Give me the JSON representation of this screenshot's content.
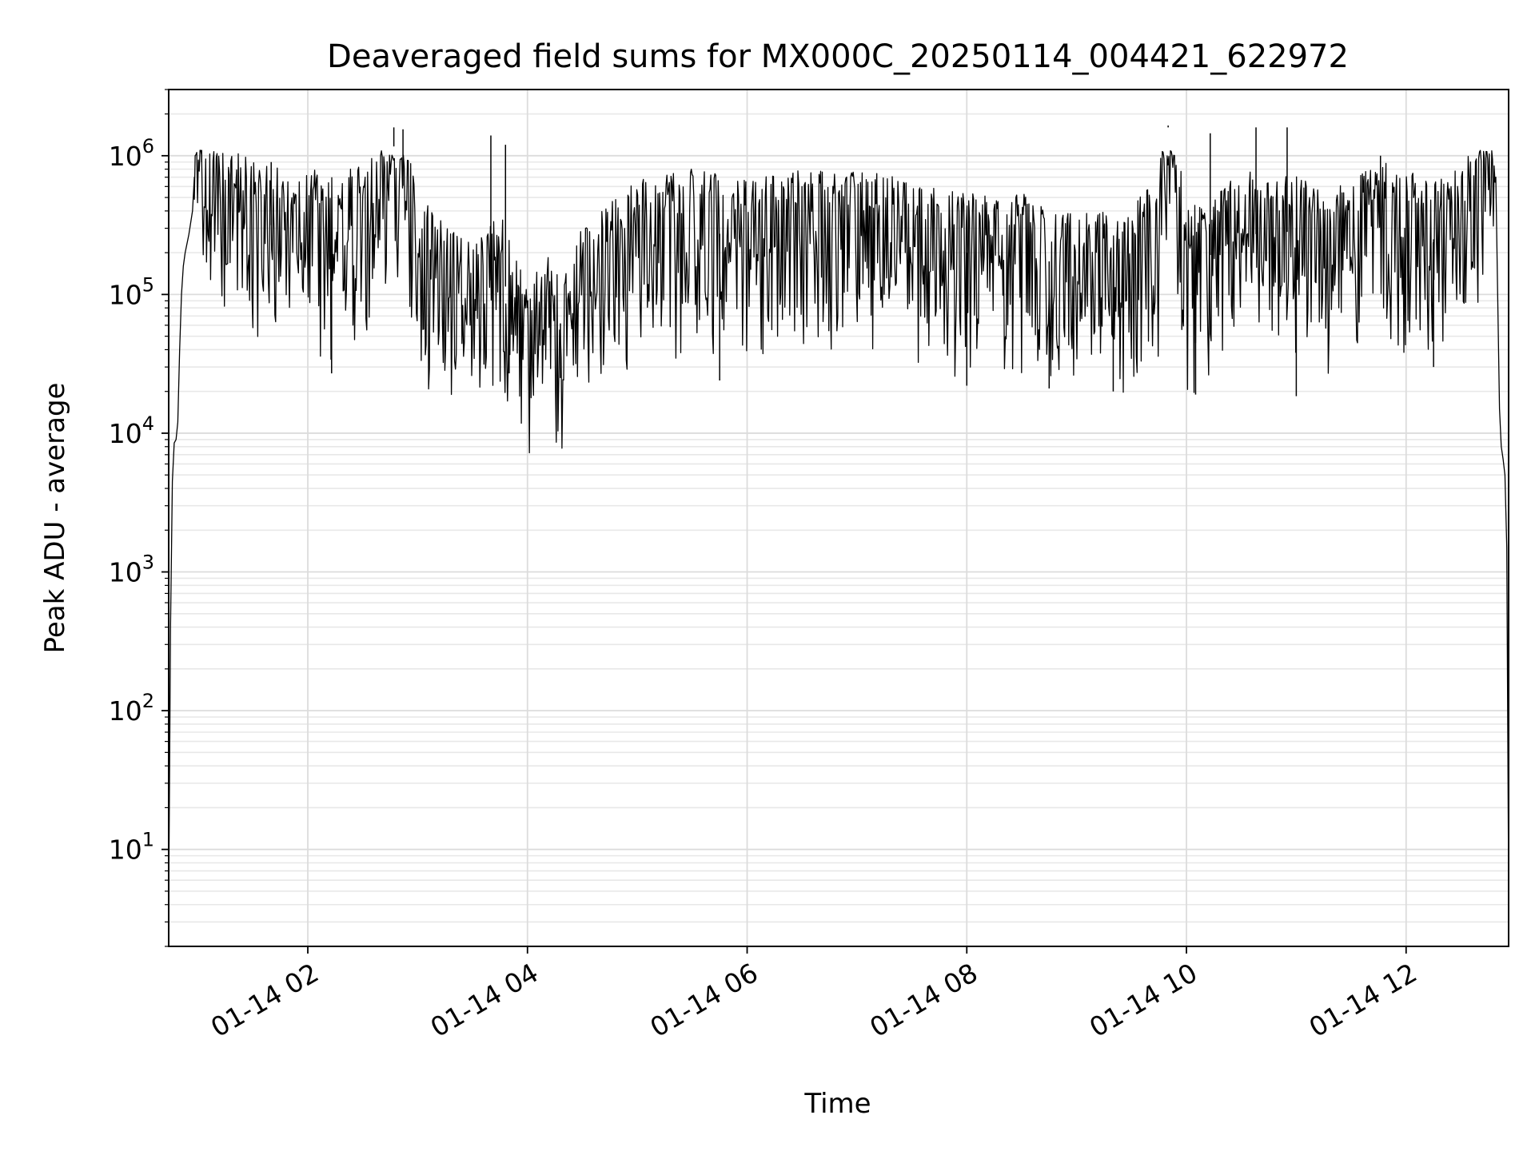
{
  "chart_data": {
    "type": "line",
    "title": "Deaveraged field sums for MX000C_20250114_004421_622972",
    "xlabel": "Time",
    "ylabel": "Peak ADU - average",
    "yscale": "log",
    "ylim": [
      2,
      3000000
    ],
    "xlim": [
      "01-14 00:44",
      "01-14 12:56"
    ],
    "grid": true,
    "line_color": "#000000",
    "x_ticks": [
      {
        "value": "01-14 02:00",
        "label": "01-14 02"
      },
      {
        "value": "01-14 04:00",
        "label": "01-14 04"
      },
      {
        "value": "01-14 06:00",
        "label": "01-14 06"
      },
      {
        "value": "01-14 08:00",
        "label": "01-14 08"
      },
      {
        "value": "01-14 10:00",
        "label": "01-14 10"
      },
      {
        "value": "01-14 12:00",
        "label": "01-14 12"
      }
    ],
    "y_ticks": [
      {
        "value": 10,
        "base": "10",
        "exp": "1"
      },
      {
        "value": 100,
        "base": "10",
        "exp": "2"
      },
      {
        "value": 1000,
        "base": "10",
        "exp": "3"
      },
      {
        "value": 10000,
        "base": "10",
        "exp": "4"
      },
      {
        "value": 100000,
        "base": "10",
        "exp": "5"
      },
      {
        "value": 1000000,
        "base": "10",
        "exp": "6"
      }
    ],
    "series": [
      {
        "points": [
          [
            "00:44",
            4
          ],
          [
            "00:45",
            400
          ],
          [
            "00:46",
            4500
          ],
          [
            "00:47",
            8500
          ],
          [
            "00:48",
            9000
          ],
          [
            "00:49",
            12000
          ],
          [
            "00:50",
            40000
          ],
          [
            "00:51",
            100000
          ],
          [
            "00:52",
            160000
          ],
          [
            "00:53",
            200000
          ],
          [
            "00:55",
            270000
          ],
          [
            "00:57",
            400000
          ],
          [
            "00:58",
            700000
          ],
          [
            "01:00",
            1400000
          ],
          [
            "01:02",
            900000
          ],
          [
            "01:05",
            700000
          ],
          [
            "01:08",
            600000
          ],
          [
            "01:15",
            500000
          ],
          [
            "01:30",
            350000
          ],
          [
            "01:45",
            300000
          ],
          [
            "02:00",
            300000
          ],
          [
            "02:15",
            280000
          ],
          [
            "02:30",
            350000
          ],
          [
            "02:40",
            600000
          ],
          [
            "02:45",
            1500000
          ],
          [
            "02:50",
            800000
          ],
          [
            "03:00",
            200000
          ],
          [
            "03:15",
            120000
          ],
          [
            "03:30",
            90000
          ],
          [
            "03:45",
            150000
          ],
          [
            "03:55",
            60000
          ],
          [
            "04:00",
            45000
          ],
          [
            "04:10",
            70000
          ],
          [
            "04:20",
            60000
          ],
          [
            "04:30",
            120000
          ],
          [
            "05:00",
            250000
          ],
          [
            "05:30",
            300000
          ],
          [
            "06:00",
            250000
          ],
          [
            "06:30",
            300000
          ],
          [
            "07:00",
            300000
          ],
          [
            "07:30",
            250000
          ],
          [
            "08:00",
            200000
          ],
          [
            "08:30",
            200000
          ],
          [
            "09:00",
            150000
          ],
          [
            "09:30",
            150000
          ],
          [
            "09:45",
            300000
          ],
          [
            "09:50",
            1600000
          ],
          [
            "09:55",
            500000
          ],
          [
            "10:00",
            150000
          ],
          [
            "10:15",
            200000
          ],
          [
            "10:30",
            300000
          ],
          [
            "10:45",
            250000
          ],
          [
            "11:00",
            300000
          ],
          [
            "11:15",
            200000
          ],
          [
            "11:30",
            250000
          ],
          [
            "11:45",
            350000
          ],
          [
            "12:00",
            300000
          ],
          [
            "12:15",
            250000
          ],
          [
            "12:30",
            300000
          ],
          [
            "12:40",
            600000
          ],
          [
            "12:45",
            1700000
          ],
          [
            "12:47",
            800000
          ],
          [
            "12:49",
            400000
          ],
          [
            "12:50",
            100000
          ],
          [
            "12:51",
            15000
          ],
          [
            "12:52",
            8000
          ],
          [
            "12:53",
            6500
          ],
          [
            "12:54",
            5000
          ],
          [
            "12:55",
            1500
          ],
          [
            "12:56",
            5
          ]
        ],
        "spikes_high": [
          [
            "01:02",
            1100000
          ],
          [
            "01:40",
            900000
          ],
          [
            "02:47",
            1600000
          ],
          [
            "02:52",
            1550000
          ],
          [
            "03:40",
            1400000
          ],
          [
            "03:48",
            1200000
          ],
          [
            "09:50",
            1650000
          ],
          [
            "10:13",
            1450000
          ],
          [
            "10:38",
            1600000
          ],
          [
            "10:55",
            1600000
          ],
          [
            "11:46",
            1000000
          ],
          [
            "12:45",
            1700000
          ]
        ],
        "spikes_low": [
          [
            "02:13",
            27000
          ],
          [
            "03:50",
            27000
          ],
          [
            "04:18",
            25000
          ],
          [
            "05:45",
            24000
          ],
          [
            "08:00",
            22000
          ],
          [
            "08:45",
            21000
          ],
          [
            "09:20",
            20000
          ],
          [
            "10:05",
            19000
          ],
          [
            "11:00",
            18500
          ],
          [
            "12:15",
            30000
          ]
        ]
      }
    ]
  }
}
